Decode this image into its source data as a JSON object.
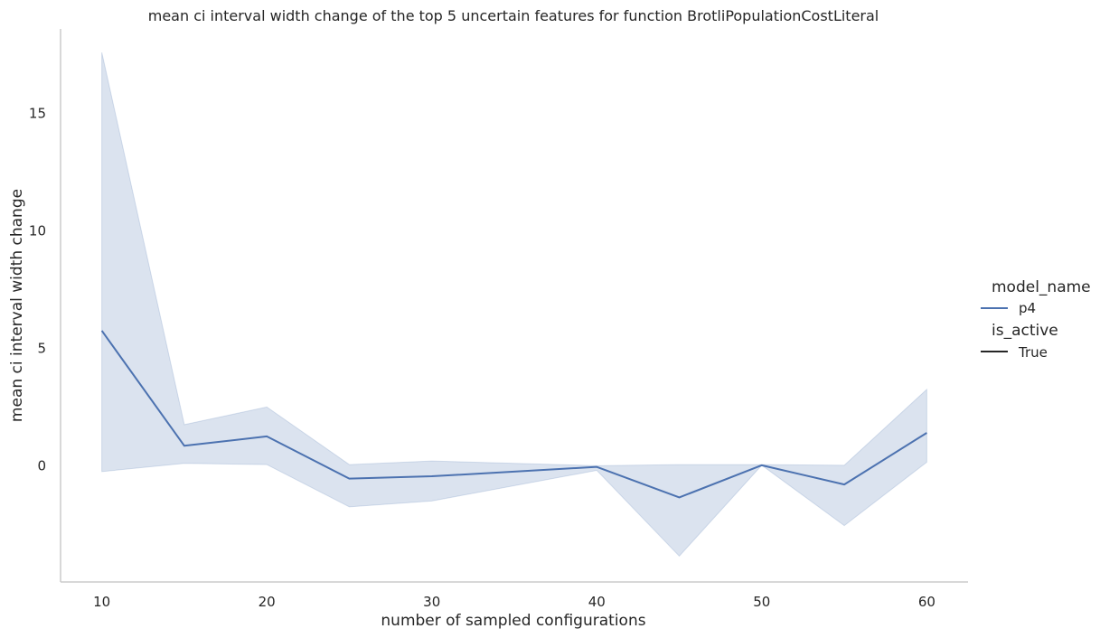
{
  "chart_data": {
    "type": "line",
    "title": "mean ci interval width change of the top 5 uncertain features for function BrotliPopulationCostLiteral",
    "xlabel": "number of sampled configurations",
    "ylabel": "mean ci interval width change",
    "x": [
      10,
      15,
      20,
      25,
      30,
      40,
      45,
      50,
      55,
      60
    ],
    "series": [
      {
        "name": "p4",
        "color": "#4c72b0",
        "values": [
          5.75,
          0.85,
          1.25,
          -0.55,
          -0.45,
          -0.05,
          -1.35,
          0.02,
          -0.8,
          1.4
        ],
        "ci_lower": [
          -0.25,
          0.1,
          0.05,
          -1.75,
          -1.5,
          -0.2,
          -3.85,
          0.02,
          -2.55,
          0.15
        ],
        "ci_upper": [
          17.6,
          1.75,
          2.5,
          0.05,
          0.2,
          0.0,
          0.05,
          0.05,
          0.02,
          3.25
        ]
      }
    ],
    "xticks": [
      10,
      20,
      30,
      40,
      50,
      60
    ],
    "yticks": [
      0,
      5,
      10,
      15
    ],
    "xlim": [
      7.5,
      62.5
    ],
    "ylim": [
      -4.95,
      18.6
    ],
    "grid": false,
    "legend": {
      "placement": "right",
      "hue_title": "model_name",
      "hue_entries": [
        {
          "label": "p4",
          "color": "#4c72b0"
        }
      ],
      "style_title": "is_active",
      "style_entries": [
        {
          "label": "True",
          "color": "#262626"
        }
      ]
    },
    "band_color": "#4c72b0",
    "axis_color": "#cccccc"
  }
}
